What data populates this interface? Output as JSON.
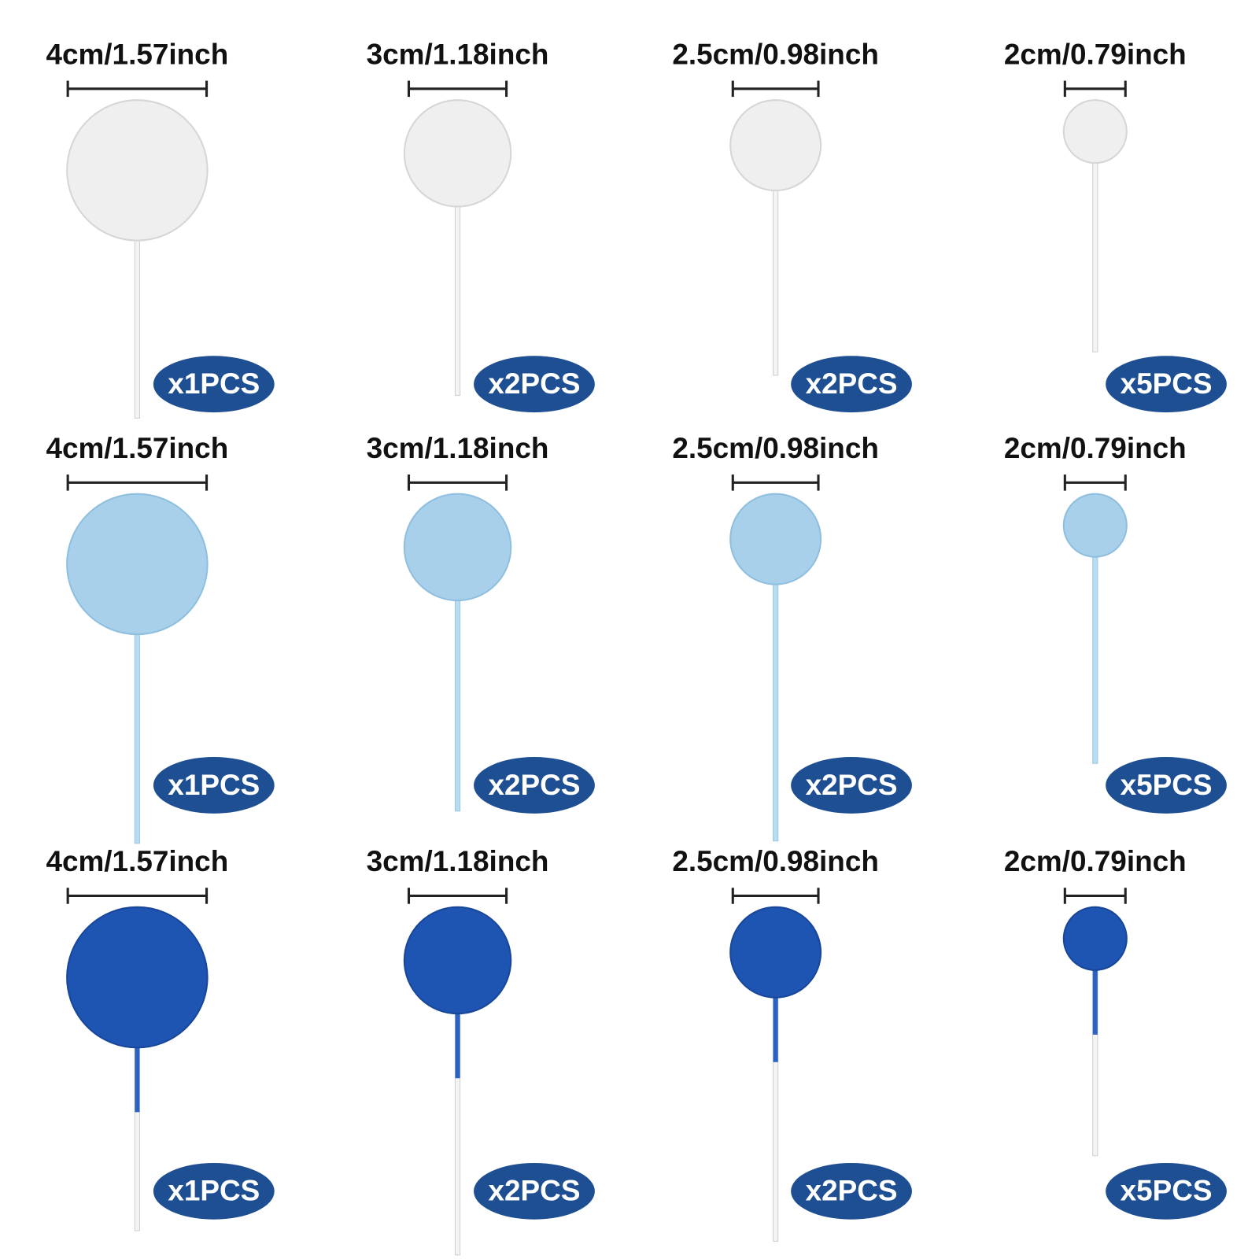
{
  "rows": [
    {
      "items": [
        {
          "size": "4cm/1.57inch",
          "quantity": "x1PCS"
        },
        {
          "size": "3cm/1.18inch",
          "quantity": "x2PCS"
        },
        {
          "size": "2.5cm/0.98inch",
          "quantity": "x2PCS"
        },
        {
          "size": "2cm/0.79inch",
          "quantity": "x5PCS"
        }
      ]
    },
    {
      "items": [
        {
          "size": "4cm/1.57inch",
          "quantity": "x1PCS"
        },
        {
          "size": "3cm/1.18inch",
          "quantity": "x2PCS"
        },
        {
          "size": "2.5cm/0.98inch",
          "quantity": "x2PCS"
        },
        {
          "size": "2cm/0.79inch",
          "quantity": "x5PCS"
        }
      ]
    },
    {
      "items": [
        {
          "size": "4cm/1.57inch",
          "quantity": "x1PCS"
        },
        {
          "size": "3cm/1.18inch",
          "quantity": "x2PCS"
        },
        {
          "size": "2.5cm/0.98inch",
          "quantity": "x2PCS"
        },
        {
          "size": "2cm/0.79inch",
          "quantity": "x5PCS"
        }
      ]
    }
  ]
}
